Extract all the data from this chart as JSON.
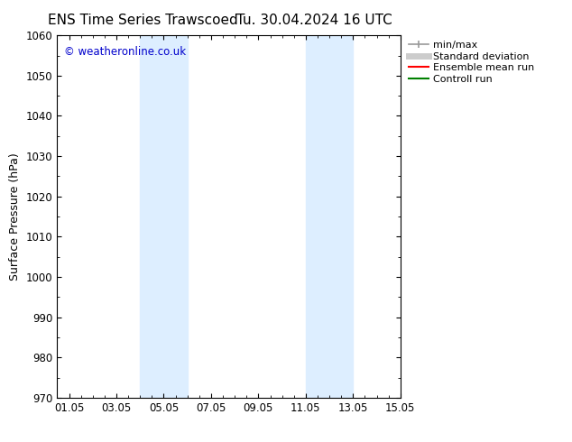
{
  "title_left": "ENS Time Series Trawscoed",
  "title_right": "Tu. 30.04.2024 16 UTC",
  "ylabel": "Surface Pressure (hPa)",
  "ylim": [
    970,
    1060
  ],
  "yticks": [
    970,
    980,
    990,
    1000,
    1010,
    1020,
    1030,
    1040,
    1050,
    1060
  ],
  "xlim": [
    0,
    14.5
  ],
  "xtick_labels": [
    "01.05",
    "03.05",
    "05.05",
    "07.05",
    "09.05",
    "11.05",
    "13.05",
    "15.05"
  ],
  "xtick_positions": [
    0.5,
    2.5,
    4.5,
    6.5,
    8.5,
    10.5,
    12.5,
    14.5
  ],
  "shaded_bands": [
    {
      "xmin": 3.5,
      "xmax": 4.5
    },
    {
      "xmin": 4.5,
      "xmax": 5.5
    },
    {
      "xmin": 10.5,
      "xmax": 11.5
    },
    {
      "xmin": 11.5,
      "xmax": 12.5
    }
  ],
  "shade_colors": [
    "#d8ebf8",
    "#ddeeff",
    "#d8ebf8",
    "#ddeeff"
  ],
  "background_color": "#ffffff",
  "watermark_text": "© weatheronline.co.uk",
  "watermark_color": "#0000cc",
  "legend_items": [
    {
      "label": "min/max",
      "color": "#999999",
      "lw": 1.2,
      "marker": "|"
    },
    {
      "label": "Standard deviation",
      "color": "#cccccc",
      "lw": 5,
      "marker": ""
    },
    {
      "label": "Ensemble mean run",
      "color": "#ff0000",
      "lw": 1.5,
      "marker": ""
    },
    {
      "label": "Controll run",
      "color": "#008000",
      "lw": 1.5,
      "marker": ""
    }
  ],
  "title_fontsize": 11,
  "axis_fontsize": 9,
  "tick_fontsize": 8.5,
  "legend_fontsize": 8
}
